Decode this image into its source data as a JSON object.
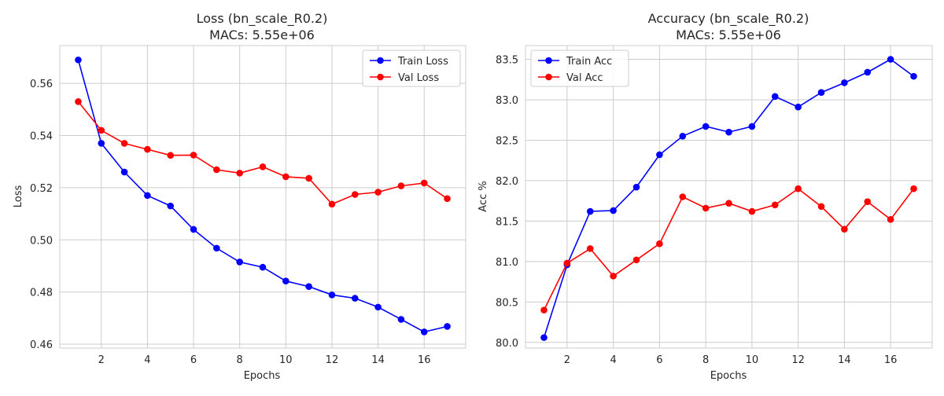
{
  "chart_data": [
    {
      "type": "line",
      "title": "Loss (bn_scale_R0.2)",
      "subtitle": "MACs: 5.55e+06",
      "xlabel": "Epochs",
      "ylabel": "Loss",
      "xlim": [
        0.2,
        17.8
      ],
      "ylim": [
        0.4585,
        0.5745
      ],
      "xticks": [
        2,
        4,
        6,
        8,
        10,
        12,
        14,
        16
      ],
      "yticks": [
        0.46,
        0.48,
        0.5,
        0.52,
        0.54,
        0.56
      ],
      "ytick_decimals": 2,
      "grid": true,
      "legend_position": "upper-right",
      "x": [
        1,
        2,
        3,
        4,
        5,
        6,
        7,
        8,
        9,
        10,
        11,
        12,
        13,
        14,
        15,
        16,
        17
      ],
      "series": [
        {
          "name": "Train Loss",
          "color": "#0000ff",
          "values": [
            0.569,
            0.537,
            0.526,
            0.517,
            0.513,
            0.504,
            0.4968,
            0.4915,
            0.4895,
            0.4842,
            0.4821,
            0.4789,
            0.4776,
            0.4742,
            0.4695,
            0.4647,
            0.4668
          ]
        },
        {
          "name": "Val Loss",
          "color": "#ff0000",
          "values": [
            0.553,
            0.542,
            0.537,
            0.5347,
            0.5324,
            0.5325,
            0.5269,
            0.5256,
            0.528,
            0.5242,
            0.5236,
            0.5137,
            0.5174,
            0.5183,
            0.5207,
            0.5218,
            0.5158
          ]
        }
      ]
    },
    {
      "type": "line",
      "title": "Accuracy (bn_scale_R0.2)",
      "subtitle": "MACs: 5.55e+06",
      "xlabel": "Epochs",
      "ylabel": "Acc %",
      "xlim": [
        0.2,
        17.8
      ],
      "ylim": [
        79.93,
        83.67
      ],
      "xticks": [
        2,
        4,
        6,
        8,
        10,
        12,
        14,
        16
      ],
      "yticks": [
        80.0,
        80.5,
        81.0,
        81.5,
        82.0,
        82.5,
        83.0,
        83.5
      ],
      "ytick_decimals": 1,
      "grid": true,
      "legend_position": "upper-left",
      "x": [
        1,
        2,
        3,
        4,
        5,
        6,
        7,
        8,
        9,
        10,
        11,
        12,
        13,
        14,
        15,
        16,
        17
      ],
      "series": [
        {
          "name": "Train Acc",
          "color": "#0000ff",
          "values": [
            80.06,
            80.96,
            81.62,
            81.63,
            81.92,
            82.32,
            82.55,
            82.67,
            82.6,
            82.67,
            83.04,
            82.91,
            83.09,
            83.21,
            83.34,
            83.5,
            83.29
          ]
        },
        {
          "name": "Val Acc",
          "color": "#ff0000",
          "values": [
            80.4,
            80.98,
            81.16,
            80.82,
            81.02,
            81.22,
            81.8,
            81.66,
            81.72,
            81.62,
            81.7,
            81.9,
            81.68,
            81.4,
            81.74,
            81.52,
            81.9
          ]
        }
      ]
    }
  ]
}
